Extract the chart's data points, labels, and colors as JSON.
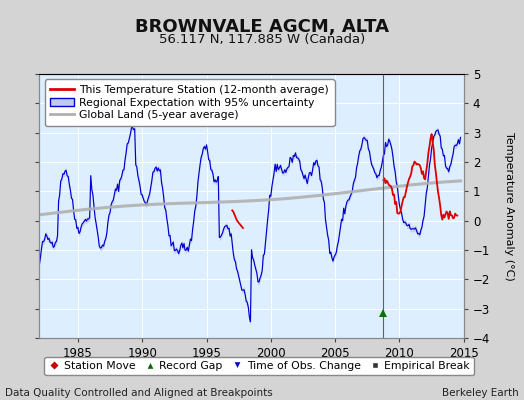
{
  "title": "BROWNVALE AGCM, ALTA",
  "subtitle": "56.117 N, 117.885 W (Canada)",
  "ylabel": "Temperature Anomaly (°C)",
  "xlabel_left": "Data Quality Controlled and Aligned at Breakpoints",
  "xlabel_right": "Berkeley Earth",
  "xlim": [
    1982.0,
    2015.0
  ],
  "ylim": [
    -4,
    5
  ],
  "yticks": [
    -4,
    -3,
    -2,
    -1,
    0,
    1,
    2,
    3,
    4,
    5
  ],
  "xticks": [
    1985,
    1990,
    1995,
    2000,
    2005,
    2010,
    2015
  ],
  "fig_bg_color": "#d4d4d4",
  "plot_bg_color": "#ddeeff",
  "grid_color": "#ffffff",
  "red_color": "#dd0000",
  "blue_color": "#0000cc",
  "blue_fill_color": "#c0ccee",
  "gray_color": "#b0b0b0",
  "vertical_line_x": 2008.75,
  "record_gap_x": 2008.75,
  "record_gap_y": -3.15,
  "title_fontsize": 13,
  "subtitle_fontsize": 9.5,
  "axis_label_fontsize": 8,
  "tick_fontsize": 8.5,
  "legend_fontsize": 7.8,
  "footer_fontsize": 7.5
}
